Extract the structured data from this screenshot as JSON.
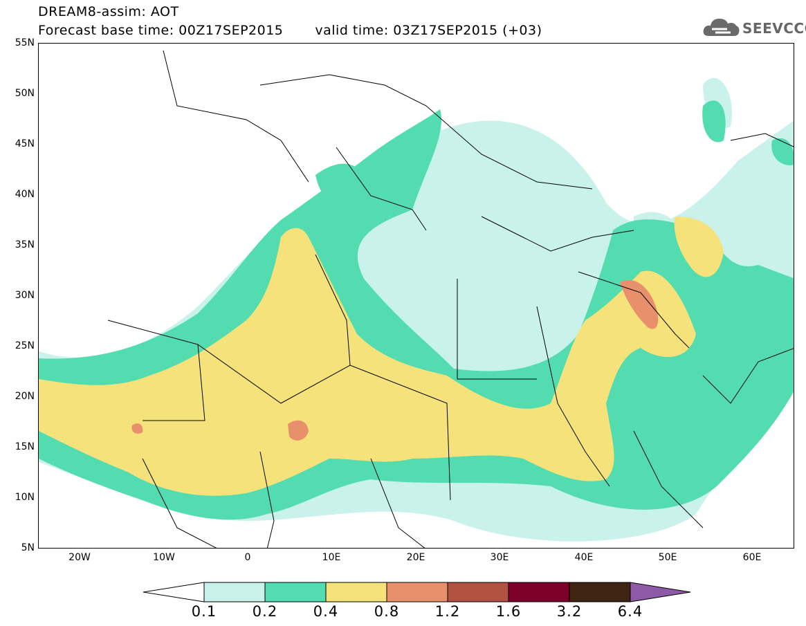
{
  "header": {
    "title": "DREAM8-assim: AOT",
    "base_time": "Forecast base time: 00Z17SEP2015",
    "valid_time": "valid time: 03Z17SEP2015 (+03)",
    "logo_text": "SEEVCCC"
  },
  "axes": {
    "lat_labels": [
      "55N",
      "50N",
      "45N",
      "40N",
      "35N",
      "30N",
      "25N",
      "20N",
      "15N",
      "10N",
      "5N"
    ],
    "lon_labels": [
      "20W",
      "10W",
      "0",
      "10E",
      "20E",
      "30E",
      "40E",
      "50E",
      "60E"
    ]
  },
  "colorbar": {
    "labels": [
      "0.1",
      "0.2",
      "0.4",
      "0.8",
      "1.2",
      "1.6",
      "3.2",
      "6.4"
    ],
    "colors": [
      "#ffffff",
      "#c8f2ea",
      "#52dcb0",
      "#f5e27a",
      "#e8906c",
      "#b25240",
      "#7d0028",
      "#3f2412",
      "#8e5aa8"
    ]
  }
}
